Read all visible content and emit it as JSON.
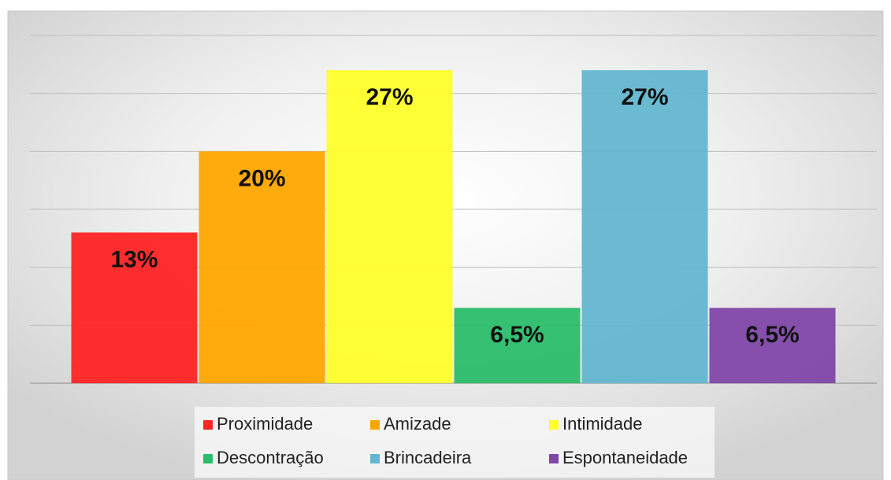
{
  "chart_data": {
    "type": "bar",
    "categories": [
      "Proximidade",
      "Amizade",
      "Intimidade",
      "Descontração",
      "Brincadeira",
      "Espontaneidade"
    ],
    "values": [
      13,
      20,
      27,
      6.5,
      27,
      6.5
    ],
    "value_labels": [
      "13%",
      "20%",
      "27%",
      "6,5%",
      "27%",
      "6,5%"
    ],
    "colors": [
      "#ff2424",
      "#ffa500",
      "#ffff2a",
      "#2abd6a",
      "#63b6cf",
      "#8047a8"
    ],
    "ylim": [
      0,
      30
    ],
    "yticks": [
      0,
      5,
      10,
      15,
      20,
      25,
      30
    ],
    "grid": true
  }
}
